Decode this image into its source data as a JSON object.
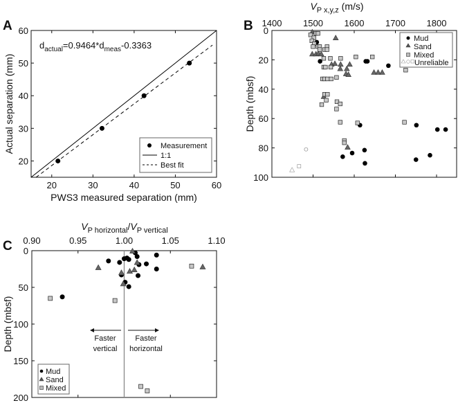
{
  "chart_data": [
    {
      "panel": "A",
      "type": "scatter",
      "xlabel": "PWS3 measured separation (mm)",
      "ylabel": "Actual separation (mm)",
      "xlim": [
        15,
        60
      ],
      "ylim": [
        15,
        60
      ],
      "xticks": [
        20,
        30,
        40,
        50,
        60
      ],
      "yticks": [
        20,
        30,
        40,
        50,
        60
      ],
      "annotation": {
        "base1": "d",
        "sub1": "actual",
        "mid": "=0.9464*d",
        "sub2": "meas",
        "tail": "-0.3363"
      },
      "fit": {
        "slope": 0.9464,
        "intercept": -0.3363
      },
      "legend": {
        "placement": "bottom-right",
        "entries": [
          "Measurement",
          "1:1",
          "Best fit"
        ]
      },
      "series": [
        {
          "name": "Measurement",
          "x": [
            21.5,
            32.2,
            42.4,
            53.4
          ],
          "y": [
            20,
            30,
            40,
            50
          ]
        }
      ]
    },
    {
      "panel": "B",
      "type": "scatter",
      "xlabel_main": "V",
      "xlabel_sub": "P x,y,z",
      "xlabel_unit": " (m/s)",
      "ylabel": "Depth (mbsf)",
      "xlim": [
        1400,
        1850
      ],
      "ylim": [
        0,
        100
      ],
      "xticks": [
        1400,
        1500,
        1600,
        1700,
        1800
      ],
      "yticks": [
        0,
        20,
        40,
        60,
        80,
        100
      ],
      "legend": {
        "placement": "top-right",
        "entries": [
          "Mud",
          "Sand",
          "Mixed",
          "Unreliable"
        ]
      },
      "series": [
        {
          "name": "Mud",
          "points": [
            [
              1509,
              8
            ],
            [
              1517,
              21
            ],
            [
              1628,
              21
            ],
            [
              1632,
              21
            ],
            [
              1683,
              24
            ],
            [
              1614,
              64.5
            ],
            [
              1751,
              64.5
            ],
            [
              1802,
              67.5
            ],
            [
              1822,
              67.5
            ],
            [
              1572,
              86
            ],
            [
              1595,
              83.5
            ],
            [
              1625,
              81.5
            ],
            [
              1626,
              90.5
            ],
            [
              1750,
              88
            ],
            [
              1784,
              85
            ]
          ]
        },
        {
          "name": "Sand",
          "points": [
            [
              1498,
              1
            ],
            [
              1555,
              5
            ],
            [
              1498,
              16
            ],
            [
              1507,
              16
            ],
            [
              1513,
              15.5
            ],
            [
              1520,
              16
            ],
            [
              1545,
              23
            ],
            [
              1553,
              22.5
            ],
            [
              1567,
              23
            ],
            [
              1566,
              26
            ],
            [
              1582,
              26
            ],
            [
              1589,
              23
            ],
            [
              1580,
              29.5
            ],
            [
              1586,
              30
            ],
            [
              1648,
              28.5
            ],
            [
              1658,
              28.5
            ],
            [
              1668,
              28.5
            ],
            [
              1526,
              45
            ],
            [
              1584,
              79.5
            ]
          ]
        },
        {
          "name": "Mixed",
          "points": [
            [
              1494,
              3
            ],
            [
              1502,
              5
            ],
            [
              1507,
              2
            ],
            [
              1512,
              2
            ],
            [
              1497,
              7
            ],
            [
              1503,
              9
            ],
            [
              1500,
              11
            ],
            [
              1512,
              11
            ],
            [
              1516,
              11
            ],
            [
              1516,
              13
            ],
            [
              1528,
              13
            ],
            [
              1534,
              11
            ],
            [
              1534,
              13
            ],
            [
              1526,
              19
            ],
            [
              1542,
              19
            ],
            [
              1526,
              25
            ],
            [
              1530,
              25
            ],
            [
              1543,
              25
            ],
            [
              1567,
              19
            ],
            [
              1604,
              18
            ],
            [
              1644,
              18
            ],
            [
              1523,
              33
            ],
            [
              1528,
              33
            ],
            [
              1535,
              33
            ],
            [
              1544,
              33
            ],
            [
              1557,
              32
            ],
            [
              1528,
              43.5
            ],
            [
              1535,
              43.5
            ],
            [
              1532,
              47.5
            ],
            [
              1521,
              50.5
            ],
            [
              1558,
              48.5
            ],
            [
              1566,
              50
            ],
            [
              1557,
              53.5
            ],
            [
              1566,
              62.5
            ],
            [
              1608,
              63
            ],
            [
              1722,
              62.5
            ],
            [
              1725,
              27
            ],
            [
              1576,
              75
            ],
            [
              1576,
              76.5
            ]
          ]
        },
        {
          "name": "Unreliable",
          "points": [
            [
              1449,
              95,
              "triangle"
            ],
            [
              1466,
              92.5,
              "square"
            ],
            [
              1483,
              81,
              "circle"
            ]
          ]
        }
      ]
    },
    {
      "panel": "C",
      "type": "scatter",
      "xlabel_main1": "V",
      "xlabel_sub1": "P horizontal",
      "xlabel_slash": "/",
      "xlabel_main2": "V",
      "xlabel_sub2": "P vertical",
      "ylabel": "Depth (mbsf)",
      "xlim": [
        0.9,
        1.1
      ],
      "ylim": [
        0,
        200
      ],
      "xticks": [
        "0.90",
        "0.95",
        "1.00",
        "1.05",
        "1.10"
      ],
      "yticks": [
        0,
        50,
        100,
        150,
        200
      ],
      "reference_x": 1.0,
      "annotations": {
        "left_line1": "Faster",
        "left_line2": "vertical",
        "right_line1": "Faster",
        "right_line2": "horizontal"
      },
      "legend": {
        "placement": "bottom-left",
        "entries": [
          "Mud",
          "Sand",
          "Mixed"
        ]
      },
      "series": [
        {
          "name": "Mud",
          "points": [
            [
              1.012,
              3
            ],
            [
              1.014,
              8
            ],
            [
              1.035,
              6
            ],
            [
              0.983,
              14
            ],
            [
              0.995,
              16
            ],
            [
              1.0,
              11
            ],
            [
              1.003,
              10
            ],
            [
              1.005,
              12
            ],
            [
              1.016,
              19
            ],
            [
              1.024,
              18
            ],
            [
              1.035,
              25
            ],
            [
              0.997,
              33
            ],
            [
              1.015,
              34
            ],
            [
              1.001,
              43
            ],
            [
              1.005,
              49
            ],
            [
              0.933,
              63
            ]
          ]
        },
        {
          "name": "Sand",
          "points": [
            [
              1.009,
              0.5
            ],
            [
              1.014,
              16
            ],
            [
              0.972,
              23
            ],
            [
              0.997,
              30
            ],
            [
              1.006,
              28
            ],
            [
              1.011,
              26
            ],
            [
              0.999,
              45
            ],
            [
              1.085,
              22
            ]
          ]
        },
        {
          "name": "Mixed",
          "points": [
            [
              1.073,
              21
            ],
            [
              0.92,
              65
            ],
            [
              0.99,
              68
            ],
            [
              1.018,
              185
            ],
            [
              1.025,
              191
            ]
          ]
        }
      ]
    }
  ],
  "panel_labels": [
    "A",
    "B",
    "C"
  ]
}
